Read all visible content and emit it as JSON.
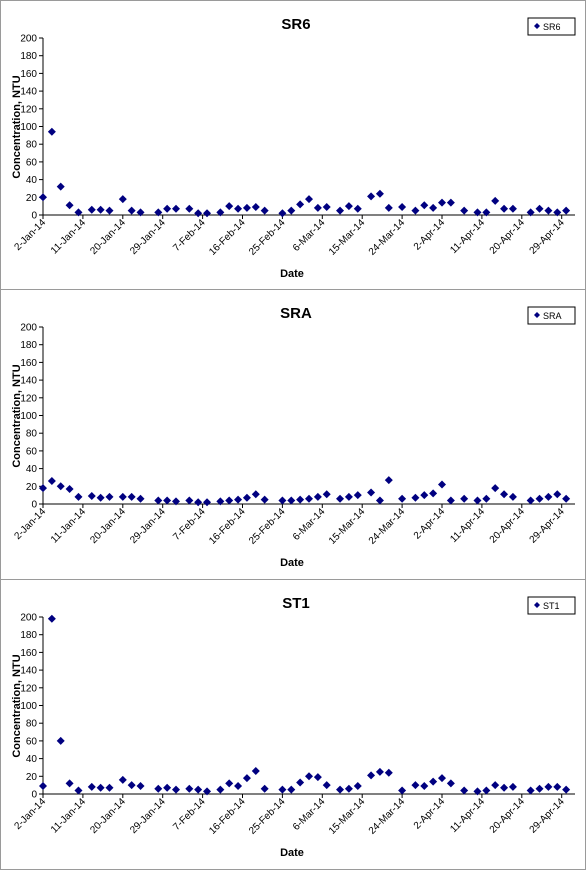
{
  "chart_data": [
    {
      "type": "scatter",
      "title": "SR6",
      "xlabel": "Date",
      "ylabel": "Concentration, NTU",
      "ylim": [
        0,
        200
      ],
      "yticks": [
        "0",
        "20",
        "40",
        "60",
        "80",
        "100",
        "120",
        "140",
        "160",
        "180",
        "200"
      ],
      "xticks": [
        "2-Jan-14",
        "11-Jan-14",
        "20-Jan-14",
        "29-Jan-14",
        "7-Feb-14",
        "16-Feb-14",
        "25-Feb-14",
        "6-Mar-14",
        "15-Mar-14",
        "24-Mar-14",
        "2-Apr-14",
        "11-Apr-14",
        "20-Apr-14",
        "29-Apr-14"
      ],
      "grid": false,
      "legend_position": "top-right",
      "marker_color": "#000080",
      "series": [
        {
          "name": "SR6",
          "points": [
            [
              "2-Jan-14",
              20
            ],
            [
              "4-Jan-14",
              94
            ],
            [
              "6-Jan-14",
              32
            ],
            [
              "8-Jan-14",
              11
            ],
            [
              "10-Jan-14",
              3
            ],
            [
              "13-Jan-14",
              6
            ],
            [
              "15-Jan-14",
              6
            ],
            [
              "17-Jan-14",
              5
            ],
            [
              "20-Jan-14",
              18
            ],
            [
              "22-Jan-14",
              5
            ],
            [
              "24-Jan-14",
              3
            ],
            [
              "28-Jan-14",
              3
            ],
            [
              "30-Jan-14",
              7
            ],
            [
              "1-Feb-14",
              7
            ],
            [
              "4-Feb-14",
              7
            ],
            [
              "6-Feb-14",
              2
            ],
            [
              "8-Feb-14",
              2
            ],
            [
              "11-Feb-14",
              3
            ],
            [
              "13-Feb-14",
              10
            ],
            [
              "15-Feb-14",
              7
            ],
            [
              "17-Feb-14",
              8
            ],
            [
              "19-Feb-14",
              9
            ],
            [
              "21-Feb-14",
              5
            ],
            [
              "25-Feb-14",
              2
            ],
            [
              "27-Feb-14",
              5
            ],
            [
              "1-Mar-14",
              12
            ],
            [
              "3-Mar-14",
              18
            ],
            [
              "5-Mar-14",
              8
            ],
            [
              "7-Mar-14",
              9
            ],
            [
              "10-Mar-14",
              5
            ],
            [
              "12-Mar-14",
              10
            ],
            [
              "14-Mar-14",
              7
            ],
            [
              "17-Mar-14",
              21
            ],
            [
              "19-Mar-14",
              24
            ],
            [
              "21-Mar-14",
              8
            ],
            [
              "24-Mar-14",
              9
            ],
            [
              "27-Mar-14",
              5
            ],
            [
              "29-Mar-14",
              11
            ],
            [
              "31-Mar-14",
              8
            ],
            [
              "2-Apr-14",
              14
            ],
            [
              "4-Apr-14",
              14
            ],
            [
              "7-Apr-14",
              5
            ],
            [
              "10-Apr-14",
              3
            ],
            [
              "12-Apr-14",
              3
            ],
            [
              "14-Apr-14",
              16
            ],
            [
              "16-Apr-14",
              7
            ],
            [
              "18-Apr-14",
              7
            ],
            [
              "22-Apr-14",
              3
            ],
            [
              "24-Apr-14",
              7
            ],
            [
              "26-Apr-14",
              5
            ],
            [
              "28-Apr-14",
              3
            ],
            [
              "30-Apr-14",
              5
            ]
          ]
        }
      ]
    },
    {
      "type": "scatter",
      "title": "SRA",
      "xlabel": "Date",
      "ylabel": "Concentration, NTU",
      "ylim": [
        0,
        200
      ],
      "yticks": [
        "0",
        "20",
        "40",
        "60",
        "80",
        "100",
        "120",
        "140",
        "160",
        "180",
        "200"
      ],
      "xticks": [
        "2-Jan-14",
        "11-Jan-14",
        "20-Jan-14",
        "29-Jan-14",
        "7-Feb-14",
        "16-Feb-14",
        "25-Feb-14",
        "6-Mar-14",
        "15-Mar-14",
        "24-Mar-14",
        "2-Apr-14",
        "11-Apr-14",
        "20-Apr-14",
        "29-Apr-14"
      ],
      "grid": false,
      "legend_position": "top-right",
      "marker_color": "#000080",
      "series": [
        {
          "name": "SRA",
          "points": [
            [
              "2-Jan-14",
              18
            ],
            [
              "4-Jan-14",
              26
            ],
            [
              "6-Jan-14",
              20
            ],
            [
              "8-Jan-14",
              17
            ],
            [
              "10-Jan-14",
              8
            ],
            [
              "13-Jan-14",
              9
            ],
            [
              "15-Jan-14",
              7
            ],
            [
              "17-Jan-14",
              8
            ],
            [
              "20-Jan-14",
              8
            ],
            [
              "22-Jan-14",
              8
            ],
            [
              "24-Jan-14",
              6
            ],
            [
              "28-Jan-14",
              4
            ],
            [
              "30-Jan-14",
              4
            ],
            [
              "1-Feb-14",
              3
            ],
            [
              "4-Feb-14",
              4
            ],
            [
              "6-Feb-14",
              2
            ],
            [
              "8-Feb-14",
              2
            ],
            [
              "11-Feb-14",
              3
            ],
            [
              "13-Feb-14",
              4
            ],
            [
              "15-Feb-14",
              5
            ],
            [
              "17-Feb-14",
              7
            ],
            [
              "19-Feb-14",
              11
            ],
            [
              "21-Feb-14",
              5
            ],
            [
              "25-Feb-14",
              4
            ],
            [
              "27-Feb-14",
              4
            ],
            [
              "1-Mar-14",
              5
            ],
            [
              "3-Mar-14",
              6
            ],
            [
              "5-Mar-14",
              8
            ],
            [
              "7-Mar-14",
              11
            ],
            [
              "10-Mar-14",
              6
            ],
            [
              "12-Mar-14",
              8
            ],
            [
              "14-Mar-14",
              10
            ],
            [
              "17-Mar-14",
              13
            ],
            [
              "19-Mar-14",
              4
            ],
            [
              "21-Mar-14",
              27
            ],
            [
              "24-Mar-14",
              6
            ],
            [
              "27-Mar-14",
              7
            ],
            [
              "29-Mar-14",
              10
            ],
            [
              "31-Mar-14",
              12
            ],
            [
              "2-Apr-14",
              22
            ],
            [
              "4-Apr-14",
              4
            ],
            [
              "7-Apr-14",
              6
            ],
            [
              "10-Apr-14",
              4
            ],
            [
              "12-Apr-14",
              6
            ],
            [
              "14-Apr-14",
              18
            ],
            [
              "16-Apr-14",
              11
            ],
            [
              "18-Apr-14",
              8
            ],
            [
              "22-Apr-14",
              4
            ],
            [
              "24-Apr-14",
              6
            ],
            [
              "26-Apr-14",
              8
            ],
            [
              "28-Apr-14",
              11
            ],
            [
              "30-Apr-14",
              6
            ]
          ]
        }
      ]
    },
    {
      "type": "scatter",
      "title": "ST1",
      "xlabel": "Date",
      "ylabel": "Concentration, NTU",
      "ylim": [
        0,
        200
      ],
      "yticks": [
        "0",
        "20",
        "40",
        "60",
        "80",
        "100",
        "120",
        "140",
        "160",
        "180",
        "200"
      ],
      "xticks": [
        "2-Jan-14",
        "11-Jan-14",
        "20-Jan-14",
        "29-Jan-14",
        "7-Feb-14",
        "16-Feb-14",
        "25-Feb-14",
        "6-Mar-14",
        "15-Mar-14",
        "24-Mar-14",
        "2-Apr-14",
        "11-Apr-14",
        "20-Apr-14",
        "29-Apr-14"
      ],
      "grid": false,
      "legend_position": "top-right",
      "marker_color": "#000080",
      "series": [
        {
          "name": "ST1",
          "points": [
            [
              "2-Jan-14",
              9
            ],
            [
              "4-Jan-14",
              198
            ],
            [
              "6-Jan-14",
              60
            ],
            [
              "8-Jan-14",
              12
            ],
            [
              "10-Jan-14",
              4
            ],
            [
              "13-Jan-14",
              8
            ],
            [
              "15-Jan-14",
              7
            ],
            [
              "17-Jan-14",
              7
            ],
            [
              "20-Jan-14",
              16
            ],
            [
              "22-Jan-14",
              10
            ],
            [
              "24-Jan-14",
              9
            ],
            [
              "28-Jan-14",
              6
            ],
            [
              "30-Jan-14",
              7
            ],
            [
              "1-Feb-14",
              5
            ],
            [
              "4-Feb-14",
              6
            ],
            [
              "6-Feb-14",
              5
            ],
            [
              "8-Feb-14",
              3
            ],
            [
              "11-Feb-14",
              5
            ],
            [
              "13-Feb-14",
              12
            ],
            [
              "15-Feb-14",
              9
            ],
            [
              "17-Feb-14",
              18
            ],
            [
              "19-Feb-14",
              26
            ],
            [
              "21-Feb-14",
              6
            ],
            [
              "25-Feb-14",
              5
            ],
            [
              "27-Feb-14",
              5
            ],
            [
              "1-Mar-14",
              13
            ],
            [
              "3-Mar-14",
              20
            ],
            [
              "5-Mar-14",
              19
            ],
            [
              "7-Mar-14",
              10
            ],
            [
              "10-Mar-14",
              5
            ],
            [
              "12-Mar-14",
              6
            ],
            [
              "14-Mar-14",
              9
            ],
            [
              "17-Mar-14",
              21
            ],
            [
              "19-Mar-14",
              25
            ],
            [
              "21-Mar-14",
              24
            ],
            [
              "24-Mar-14",
              4
            ],
            [
              "27-Mar-14",
              10
            ],
            [
              "29-Mar-14",
              9
            ],
            [
              "31-Mar-14",
              14
            ],
            [
              "2-Apr-14",
              18
            ],
            [
              "4-Apr-14",
              12
            ],
            [
              "7-Apr-14",
              4
            ],
            [
              "10-Apr-14",
              3
            ],
            [
              "12-Apr-14",
              4
            ],
            [
              "14-Apr-14",
              10
            ],
            [
              "16-Apr-14",
              7
            ],
            [
              "18-Apr-14",
              8
            ],
            [
              "22-Apr-14",
              4
            ],
            [
              "24-Apr-14",
              6
            ],
            [
              "26-Apr-14",
              8
            ],
            [
              "28-Apr-14",
              8
            ],
            [
              "30-Apr-14",
              5
            ]
          ]
        }
      ]
    }
  ]
}
